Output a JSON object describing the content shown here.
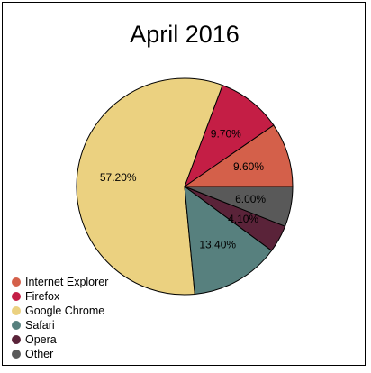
{
  "chart_data": {
    "type": "pie",
    "title": "April 2016",
    "slices": [
      {
        "label": "Internet Explorer",
        "value": 9.6,
        "text": "9.60%",
        "color": "#d4604a"
      },
      {
        "label": "Firefox",
        "value": 9.7,
        "text": "9.70%",
        "color": "#c41e45"
      },
      {
        "label": "Google Chrome",
        "value": 57.2,
        "text": "57.20%",
        "color": "#ebd180"
      },
      {
        "label": "Safari",
        "value": 13.4,
        "text": "13.40%",
        "color": "#57807e"
      },
      {
        "label": "Opera",
        "value": 4.1,
        "text": "4.10%",
        "color": "#5a2339"
      },
      {
        "label": "Other",
        "value": 6.0,
        "text": "6.00%",
        "color": "#595959"
      }
    ],
    "legend_position": "bottom-left"
  }
}
